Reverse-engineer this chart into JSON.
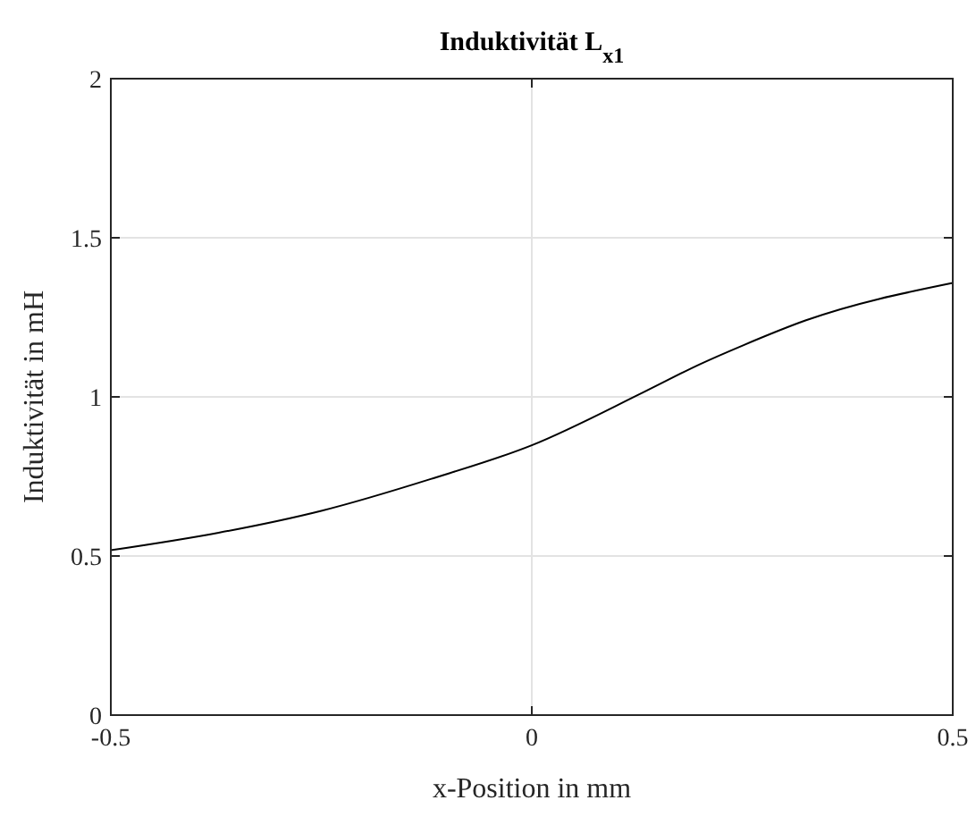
{
  "chart_data": {
    "type": "line",
    "title": "Induktivität  L$_{x1}$",
    "xlabel": "x-Position in mm",
    "ylabel": "Induktivität in mH",
    "x": [
      -0.5,
      -0.372,
      -0.25,
      -0.12,
      0,
      0.133,
      0.2,
      0.251,
      0.325,
      0.5
    ],
    "series": [
      {
        "color": "#000000",
        "values": [
          0.518,
          0.573,
          0.642,
          0.742,
          0.848,
          1.015,
          1.103,
          1.162,
          1.24,
          1.358
        ]
      }
    ],
    "xlim": [
      -0.5,
      0.5
    ],
    "xticks": [
      -0.5,
      0,
      0.5
    ],
    "ylim": [
      0,
      2
    ],
    "yticks": [
      0,
      0.5,
      1,
      1.5,
      2
    ],
    "grid": true
  }
}
